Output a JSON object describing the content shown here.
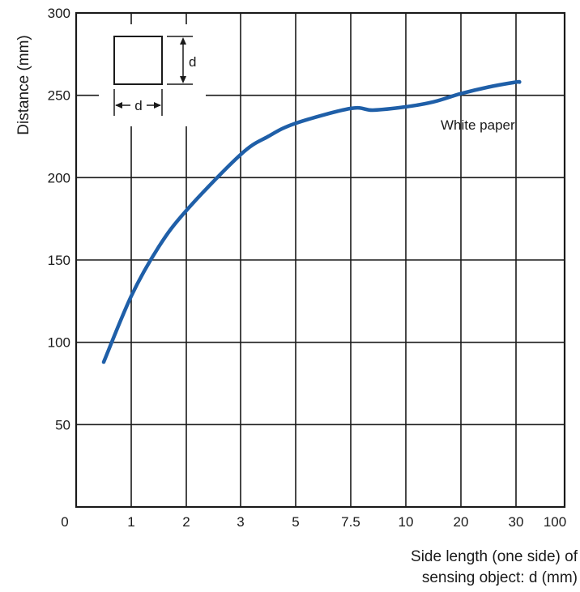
{
  "chart_data": {
    "type": "line",
    "title": "",
    "xlabel_lines": [
      "Side length (one side) of",
      "sensing object: d (mm)"
    ],
    "ylabel": "Distance (mm)",
    "x_categories": [
      "0",
      "1",
      "2",
      "3",
      "5",
      "7.5",
      "10",
      "20",
      "30",
      "100"
    ],
    "y_ticks": [
      "300",
      "250",
      "200",
      "150",
      "100",
      "50"
    ],
    "ylim": [
      0,
      300
    ],
    "grid": true,
    "series": [
      {
        "name": "White paper",
        "color": "#1f5fa8",
        "x": [
          0.5,
          1,
          1.5,
          2,
          3,
          4,
          5,
          7.5,
          8.5,
          10,
          15,
          20,
          25,
          30,
          35
        ],
        "y": [
          88,
          128,
          158,
          180,
          214,
          225,
          233,
          242,
          241,
          243,
          246,
          251,
          255,
          258,
          258
        ]
      }
    ],
    "annotation": "White paper",
    "inset_label_vertical": "d",
    "inset_label_horizontal": "d"
  }
}
